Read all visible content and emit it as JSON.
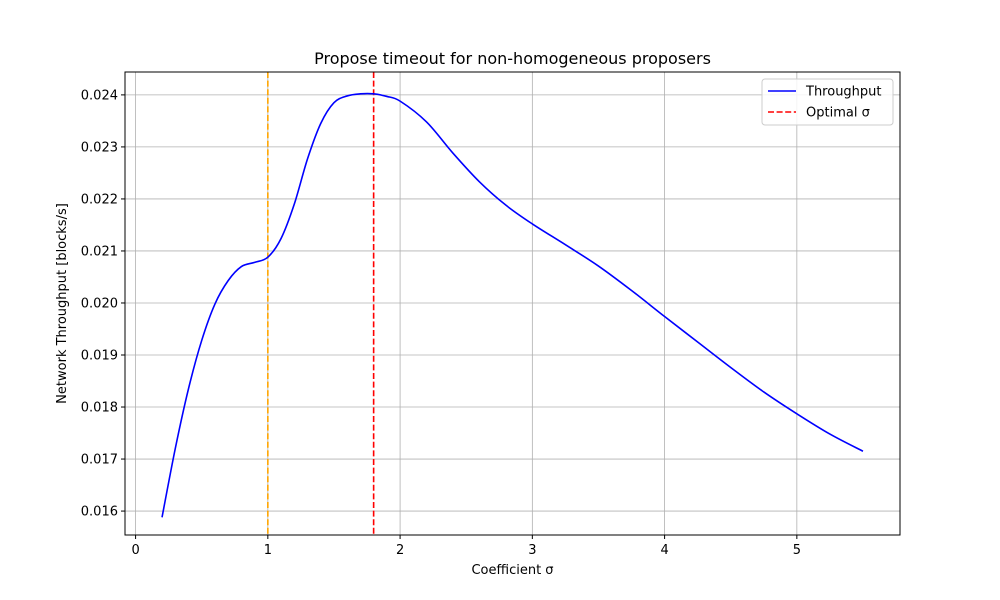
{
  "chart_data": {
    "type": "line",
    "title": "Propose timeout for non-homogeneous proposers",
    "xlabel": "Coefficient σ",
    "ylabel": "Network Throughput [blocks/s]",
    "xlim": [
      -0.08,
      5.78
    ],
    "ylim": [
      0.01554,
      0.02444
    ],
    "xticks": [
      0,
      1,
      2,
      3,
      4,
      5
    ],
    "xtick_labels": [
      "0",
      "1",
      "2",
      "3",
      "4",
      "5"
    ],
    "yticks": [
      0.016,
      0.017,
      0.018,
      0.019,
      0.02,
      0.021,
      0.022,
      0.023,
      0.024
    ],
    "ytick_labels": [
      "0.016",
      "0.017",
      "0.018",
      "0.019",
      "0.020",
      "0.021",
      "0.022",
      "0.023",
      "0.024"
    ],
    "grid": true,
    "legend_position": "top-right",
    "series": [
      {
        "name": "Throughput",
        "color": "#0000ff",
        "style": "solid",
        "x": [
          0.2,
          0.3,
          0.4,
          0.5,
          0.6,
          0.7,
          0.8,
          0.9,
          1.0,
          1.1,
          1.2,
          1.3,
          1.4,
          1.5,
          1.6,
          1.7,
          1.8,
          1.9,
          2.0,
          2.2,
          2.4,
          2.6,
          2.8,
          3.0,
          3.25,
          3.5,
          3.75,
          4.0,
          4.25,
          4.5,
          4.75,
          5.0,
          5.25,
          5.5
        ],
        "y": [
          0.01588,
          0.0172,
          0.01835,
          0.01928,
          0.01998,
          0.02043,
          0.0207,
          0.02078,
          0.02088,
          0.02124,
          0.0219,
          0.02277,
          0.02345,
          0.02385,
          0.02398,
          0.02402,
          0.02402,
          0.02397,
          0.02388,
          0.02348,
          0.02288,
          0.02233,
          0.02188,
          0.02152,
          0.02112,
          0.02071,
          0.02024,
          0.01974,
          0.01925,
          0.01876,
          0.01829,
          0.01787,
          0.01748,
          0.01715
        ]
      }
    ],
    "reference_lines": [
      {
        "name": "Optimal σ",
        "x": 1.8,
        "color": "#ff0000",
        "style": "dashed",
        "in_legend": true
      },
      {
        "x": 1.0,
        "color": "#ffa500",
        "style": "dashed",
        "in_legend": false
      }
    ]
  }
}
